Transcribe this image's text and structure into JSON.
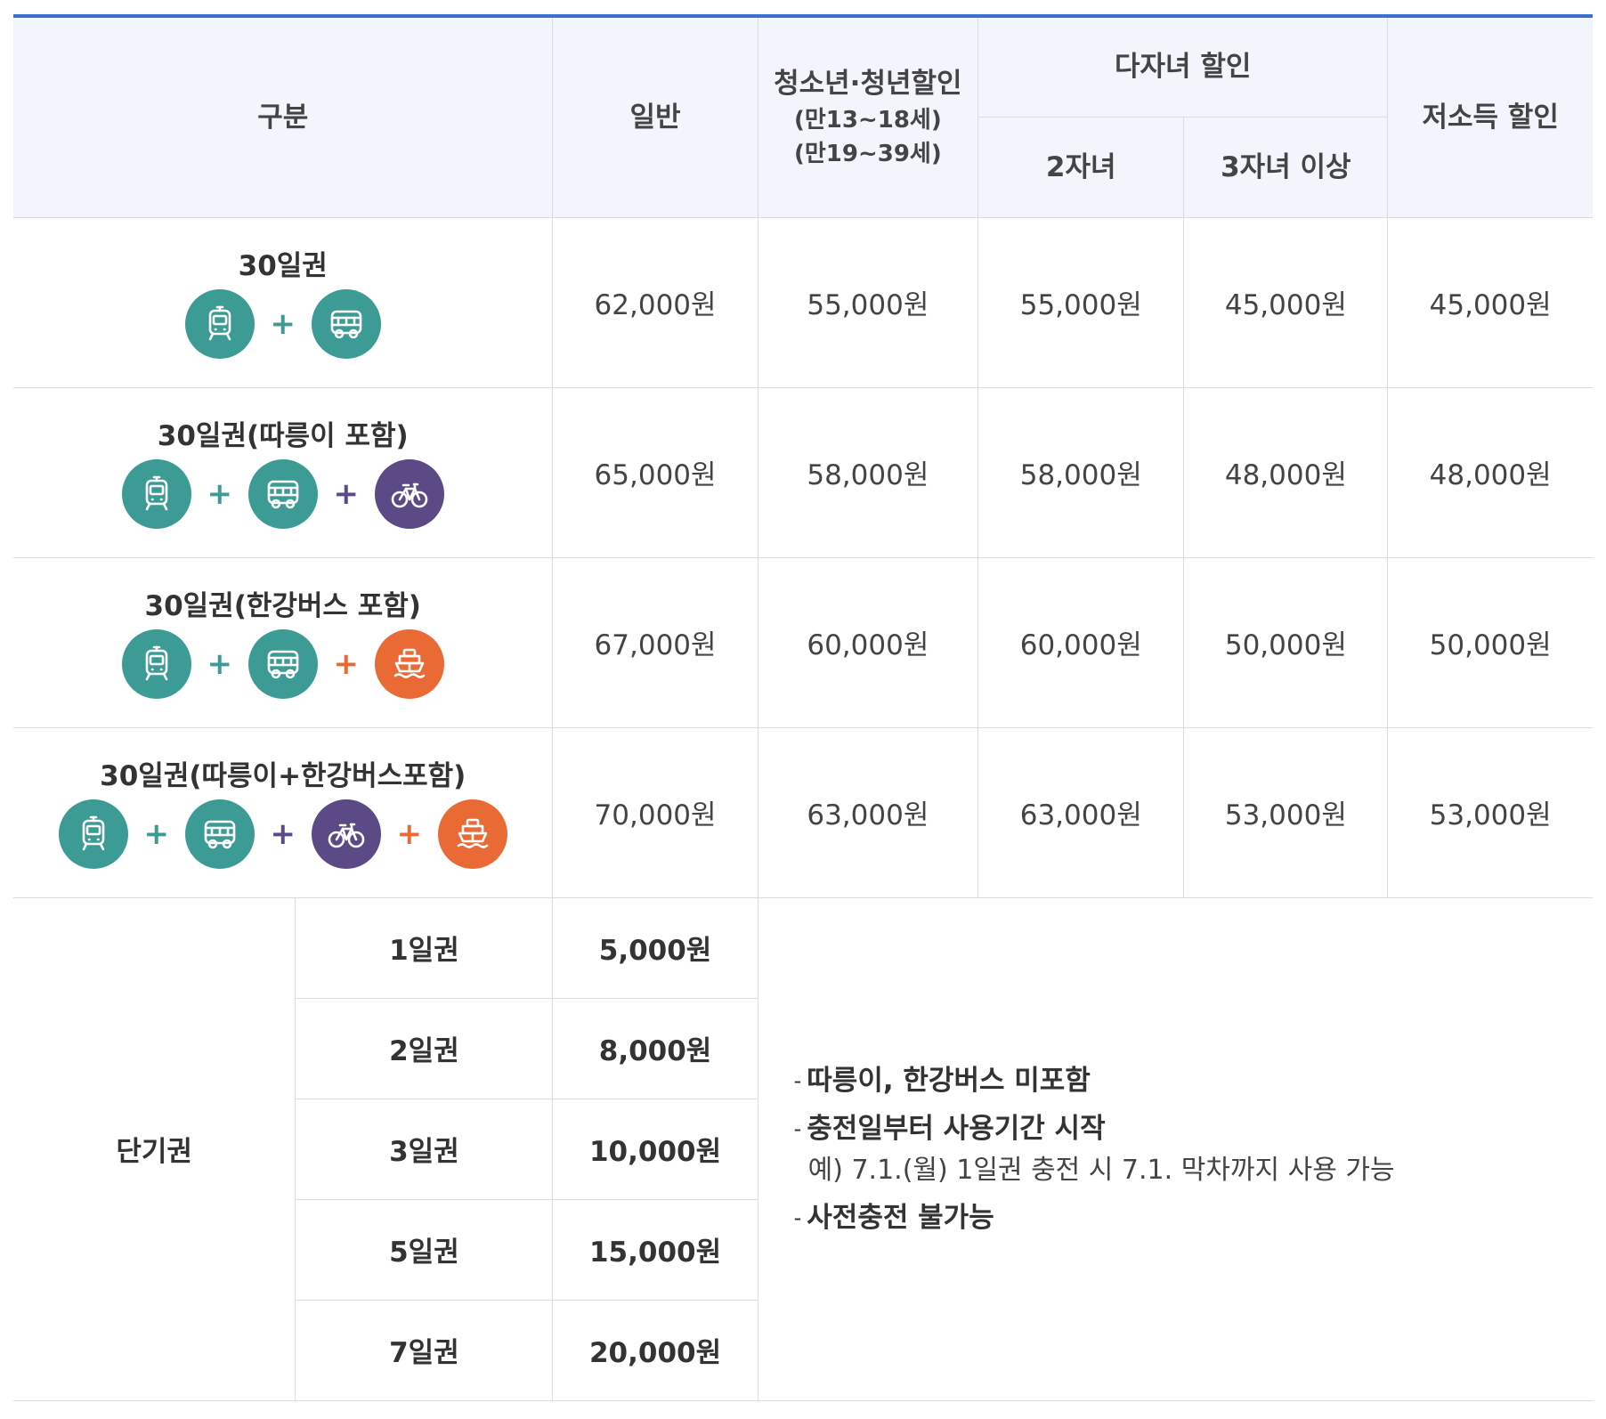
{
  "header": {
    "category": "구분",
    "general": "일반",
    "youth": {
      "title": "청소년·청년할인",
      "age1": "(만13~18세)",
      "age2": "(만19~39세)"
    },
    "multi_child": {
      "title": "다자녀 할인",
      "two": "2자녀",
      "three_plus": "3자녀 이상"
    },
    "low_income": "저소득 할인"
  },
  "passes": [
    {
      "name": "30일권",
      "icons": [
        "subway-icon",
        "bus-icon"
      ],
      "general": "62,000원",
      "youth": "55,000원",
      "two_children": "55,000원",
      "three_children": "45,000원",
      "low_income": "45,000원"
    },
    {
      "name": "30일권(따릉이 포함)",
      "icons": [
        "subway-icon",
        "bus-icon",
        "bicycle-icon"
      ],
      "general": "65,000원",
      "youth": "58,000원",
      "two_children": "58,000원",
      "three_children": "48,000원",
      "low_income": "48,000원"
    },
    {
      "name": "30일권(한강버스 포함)",
      "icons": [
        "subway-icon",
        "bus-icon",
        "ferry-icon"
      ],
      "general": "67,000원",
      "youth": "60,000원",
      "two_children": "60,000원",
      "three_children": "50,000원",
      "low_income": "50,000원"
    },
    {
      "name": "30일권(따릉이+한강버스포함)",
      "icons": [
        "subway-icon",
        "bus-icon",
        "bicycle-icon",
        "ferry-icon"
      ],
      "general": "70,000원",
      "youth": "63,000원",
      "two_children": "63,000원",
      "three_children": "53,000원",
      "low_income": "53,000원"
    }
  ],
  "short_term": {
    "label": "단기권",
    "items": [
      {
        "name": "1일권",
        "price": "5,000원"
      },
      {
        "name": "2일권",
        "price": "8,000원"
      },
      {
        "name": "3일권",
        "price": "10,000원"
      },
      {
        "name": "5일권",
        "price": "15,000원"
      },
      {
        "name": "7일권",
        "price": "20,000원"
      }
    ],
    "notes": {
      "dash": "-",
      "note1": "따릉이, 한강버스 미포함",
      "note2": "충전일부터 사용기간 시작",
      "example": "예) 7.1.(월) 1일권 충전 시 7.1. 막차까지 사용 가능",
      "note3": "사전충전 불가능"
    }
  },
  "colors": {
    "accent_top_border": "#3b6fd1",
    "header_bg": "#f2f6fc",
    "icon_teal": "#3d9b96",
    "icon_purple": "#5b4a86",
    "icon_orange": "#e96a35"
  }
}
